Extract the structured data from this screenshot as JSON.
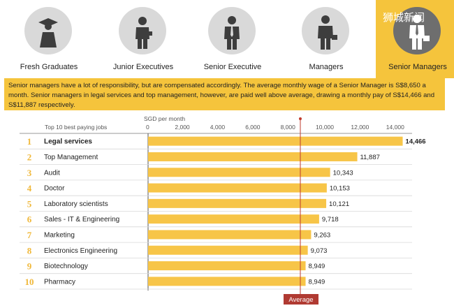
{
  "tabs": [
    {
      "label": "Fresh Graduates",
      "icon": "graduate-icon",
      "active": false
    },
    {
      "label": "Junior Executives",
      "icon": "junior-executive-icon",
      "active": false
    },
    {
      "label": "Senior Executive",
      "icon": "senior-executive-icon",
      "active": false
    },
    {
      "label": "Managers",
      "icon": "manager-icon",
      "active": false
    },
    {
      "label": "Senior Managers",
      "icon": "senior-manager-icon",
      "active": true
    }
  ],
  "watermark": "狮城新闻",
  "description": "Senior managers have a lot of responsibility, but are compensated accordingly. The average monthly wage of a Senior Manager is S$8,650 a month. Senior managers in legal services and top management, however, are paid well above average, drawing a monthly pay of S$14,466 and S$11,887 respectively.",
  "colors": {
    "accent": "#f5c43c",
    "bar": "#f7c548",
    "average_line": "#c0392b",
    "rank": "#f0b83a"
  },
  "chart_data": {
    "type": "bar",
    "orientation": "horizontal",
    "column_header": "Top 10 best paying jobs",
    "axis_label": "SGD per month",
    "ticks": [
      0,
      2000,
      4000,
      6000,
      8000,
      10000,
      12000,
      14000
    ],
    "tick_labels": [
      "0",
      "2,000",
      "4,000",
      "6,000",
      "8,000",
      "10,000",
      "12,000",
      "14,000"
    ],
    "xlim": [
      0,
      15000
    ],
    "categories": [
      "Legal services",
      "Top Management",
      "Audit",
      "Doctor",
      "Laboratory scientists",
      "Sales - IT & Engineering",
      "Marketing",
      "Electronics Engineering",
      "Biotechnology",
      "Pharmacy"
    ],
    "ranks": [
      "1",
      "2",
      "3",
      "4",
      "5",
      "6",
      "7",
      "8",
      "9",
      "10"
    ],
    "values": [
      14466,
      11887,
      10343,
      10153,
      10121,
      9718,
      9263,
      9073,
      8949,
      8949
    ],
    "value_labels": [
      "14,466",
      "11,887",
      "10,343",
      "10,153",
      "10,121",
      "9,718",
      "9,263",
      "9,073",
      "8,949",
      "8,949"
    ],
    "average": 8650,
    "average_label": "Average"
  }
}
